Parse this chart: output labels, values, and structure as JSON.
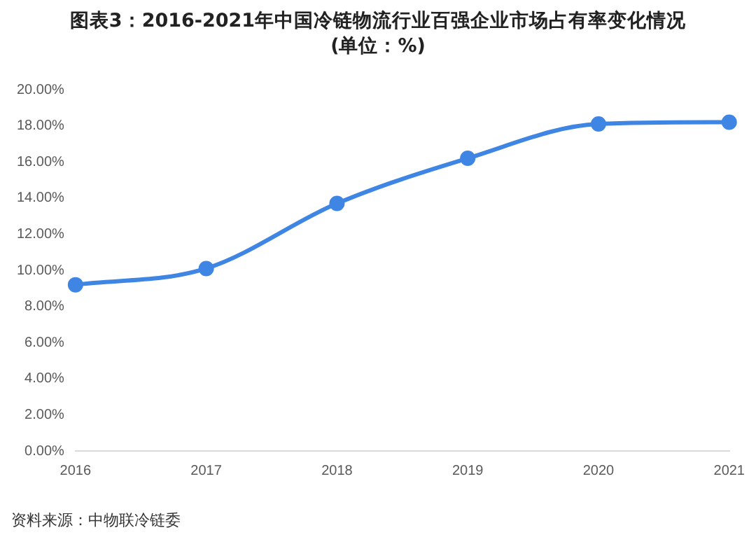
{
  "chart_data": {
    "type": "line",
    "title": "图表3：2016-2021年中国冷链物流行业百强企业市场占有率变化情况",
    "subtitle": "(单位：%)",
    "categories": [
      "2016",
      "2017",
      "2018",
      "2019",
      "2020",
      "2021"
    ],
    "series": [
      {
        "color": "#3f86e4",
        "values": [
          9.2,
          10.1,
          13.7,
          16.2,
          18.1,
          18.2
        ]
      }
    ],
    "ylim": [
      0,
      20
    ],
    "yticks": [
      {
        "value": 0,
        "label": "0.00%"
      },
      {
        "value": 2,
        "label": "2.00%"
      },
      {
        "value": 4,
        "label": "4.00%"
      },
      {
        "value": 6,
        "label": "6.00%"
      },
      {
        "value": 8,
        "label": "8.00%"
      },
      {
        "value": 10,
        "label": "10.00%"
      },
      {
        "value": 12,
        "label": "12.00%"
      },
      {
        "value": 14,
        "label": "14.00%"
      },
      {
        "value": 16,
        "label": "16.00%"
      },
      {
        "value": 18,
        "label": "18.00%"
      },
      {
        "value": 20,
        "label": "20.00%"
      }
    ],
    "grid": false,
    "legend": false,
    "marker": "circle",
    "line_style": "solid",
    "annotations": [
      "资料来源：中物联冷链委"
    ]
  }
}
